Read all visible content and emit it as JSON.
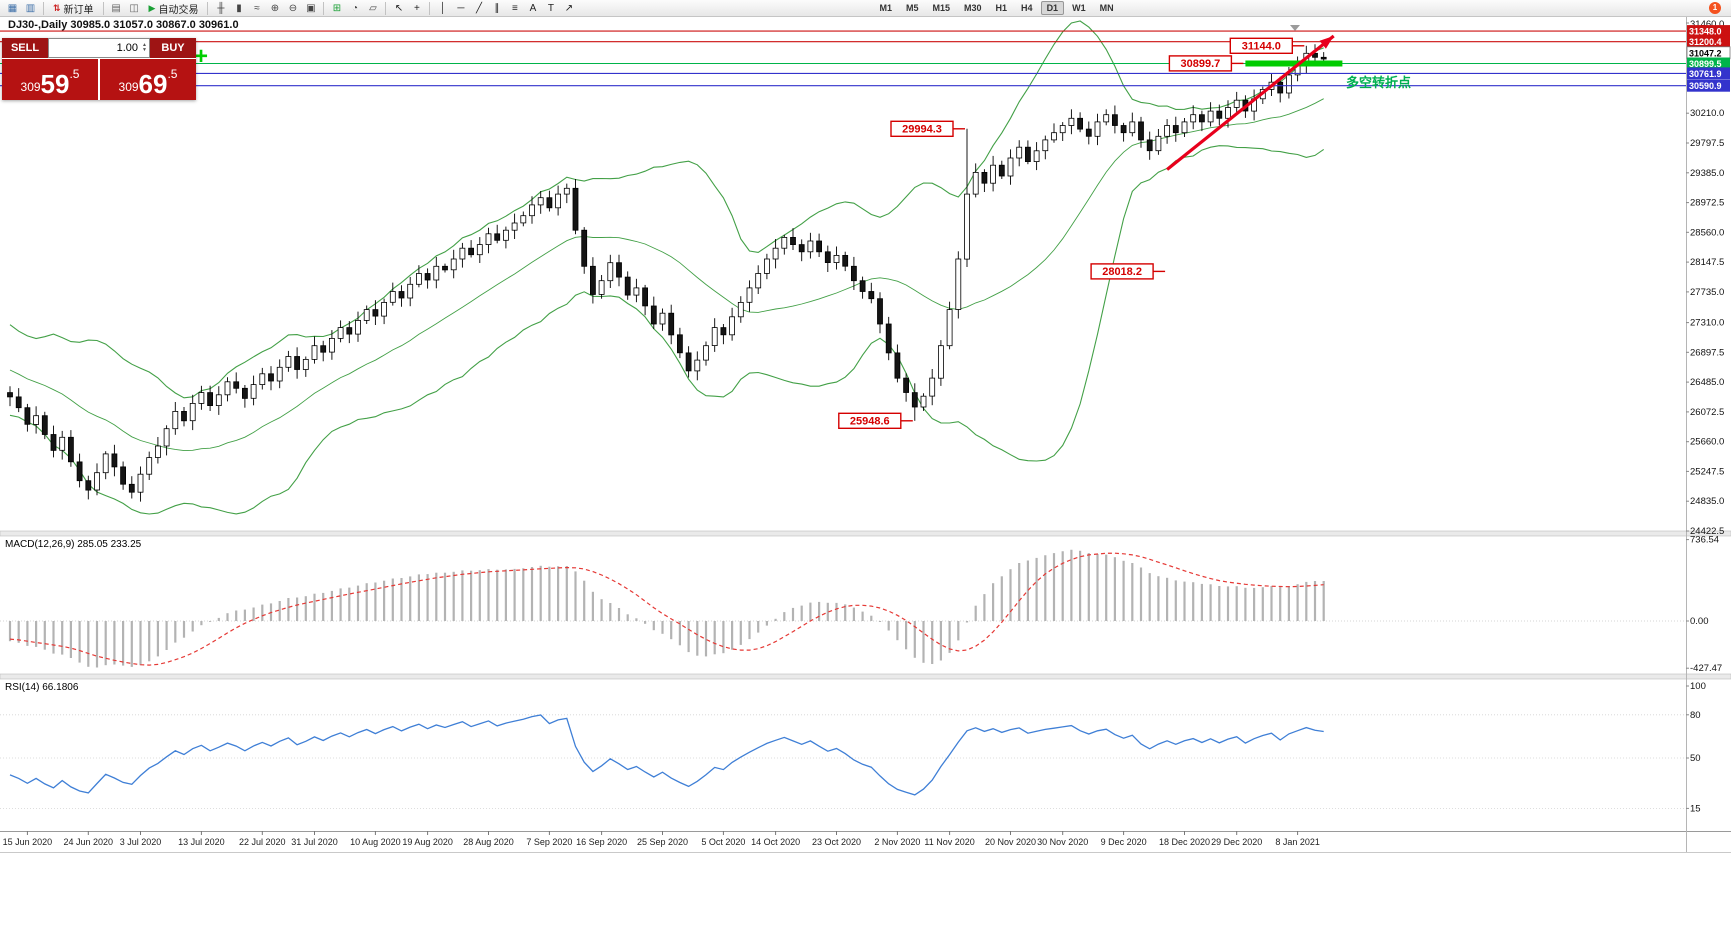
{
  "toolbar": {
    "items": [
      {
        "t": "icon",
        "name": "new-chart-icon",
        "g": "▦",
        "c": "#3d6fa8"
      },
      {
        "t": "icon",
        "name": "profiles-icon",
        "g": "▥",
        "c": "#3d6fa8"
      },
      {
        "t": "sep"
      },
      {
        "t": "btn",
        "name": "new-order-button",
        "g": "⇅",
        "gc": "#cc2222",
        "label": "新订单"
      },
      {
        "t": "sep"
      },
      {
        "t": "icon",
        "name": "market-watch-icon",
        "g": "▤",
        "c": "#666666"
      },
      {
        "t": "icon",
        "name": "data-window-icon",
        "g": "◫",
        "c": "#666666"
      },
      {
        "t": "btn",
        "name": "autotrading-button",
        "g": "▶",
        "gc": "#1aa035",
        "label": "自动交易"
      },
      {
        "t": "sep"
      },
      {
        "t": "icon",
        "name": "bar-chart-icon",
        "g": "╫",
        "c": "#444444"
      },
      {
        "t": "icon",
        "name": "candlestick-chart-icon",
        "g": "▮",
        "c": "#444444"
      },
      {
        "t": "icon",
        "name": "line-chart-icon",
        "g": "≈",
        "c": "#444444"
      },
      {
        "t": "icon",
        "name": "zoom-in-icon",
        "g": "⊕",
        "c": "#444444"
      },
      {
        "t": "icon",
        "name": "zoom-out-icon",
        "g": "⊖",
        "c": "#444444"
      },
      {
        "t": "icon",
        "name": "tile-windows-icon",
        "g": "▣",
        "c": "#444444"
      },
      {
        "t": "sep"
      },
      {
        "t": "icon",
        "name": "indicators-icon",
        "g": "⊞",
        "c": "#1aa035"
      },
      {
        "t": "icon",
        "name": "periods-icon",
        "g": "◔",
        "c": "#444444"
      },
      {
        "t": "icon",
        "name": "templates-icon",
        "g": "▱",
        "c": "#444444"
      },
      {
        "t": "sep"
      },
      {
        "t": "icon",
        "name": "cursor-icon",
        "g": "↖",
        "c": "#222222"
      },
      {
        "t": "icon",
        "name": "crosshair-icon",
        "g": "+",
        "c": "#222222"
      },
      {
        "t": "sep"
      },
      {
        "t": "icon",
        "name": "vertical-line-icon",
        "g": "│",
        "c": "#222222"
      },
      {
        "t": "icon",
        "name": "horizontal-line-icon",
        "g": "─",
        "c": "#222222"
      },
      {
        "t": "icon",
        "name": "trendline-icon",
        "g": "╱",
        "c": "#222222"
      },
      {
        "t": "icon",
        "name": "channel-icon",
        "g": "∥",
        "c": "#222222"
      },
      {
        "t": "icon",
        "name": "fibonacci-icon",
        "g": "≡",
        "c": "#222222"
      },
      {
        "t": "icon",
        "name": "text-icon",
        "g": "A",
        "c": "#222222"
      },
      {
        "t": "icon",
        "name": "label-icon",
        "g": "T",
        "c": "#222222"
      },
      {
        "t": "icon",
        "name": "arrows-icon",
        "g": "↗",
        "c": "#222222"
      }
    ],
    "timeframes": [
      {
        "label": "M1"
      },
      {
        "label": "M5"
      },
      {
        "label": "M15"
      },
      {
        "label": "M30"
      },
      {
        "label": "H1"
      },
      {
        "label": "H4"
      },
      {
        "label": "D1",
        "active": true
      },
      {
        "label": "W1"
      },
      {
        "label": "MN"
      }
    ],
    "notification_badge": "1"
  },
  "chart_header": {
    "symbol_line": "DJ30-,Daily  30985.0 31057.0 30867.0 30961.0"
  },
  "trade_panel": {
    "sell_label": "SELL",
    "buy_label": "BUY",
    "volume": "1.00",
    "sell_price": "30959.5",
    "buy_price": "30969.5"
  },
  "indicators": {
    "macd_label": "MACD(12,26,9) 285.05 233.25",
    "rsi_label": "RSI(14) 66.1806"
  },
  "annotations": {
    "cross_marker": "+",
    "trend_text": {
      "text": "多空转折点",
      "color": "#00b050"
    },
    "price_labels": [
      {
        "text": "31144.0",
        "price": 31144.0,
        "at_index": 149
      },
      {
        "text": "30899.7",
        "price": 30899.7,
        "at_index": 142
      },
      {
        "text": "29994.3",
        "price": 29994.3,
        "at_index": 110
      },
      {
        "text": "28018.2",
        "price": 28018.2,
        "at_index": 133
      },
      {
        "text": "25948.6",
        "price": 25948.6,
        "at_index": 104
      }
    ],
    "support_band": {
      "price": 30899.5,
      "from_index": 142,
      "to_index": 152,
      "color": "#00cc00"
    },
    "trend_arrow": {
      "from_index": 133,
      "from_price": 29430,
      "to_index": 151,
      "to_price": 31280,
      "color": "#e8001c"
    }
  },
  "hlines": [
    {
      "price": 31348.0,
      "color": "#cc1111"
    },
    {
      "price": 31200.4,
      "color": "#cc1111"
    },
    {
      "price": 30899.5,
      "color": "#00b44a"
    },
    {
      "price": 30761.9,
      "color": "#3333cc"
    },
    {
      "price": 30590.9,
      "color": "#3333cc"
    }
  ],
  "axis": {
    "price_ticks": [
      "31460.0",
      "30210.0",
      "29797.5",
      "29385.0",
      "28972.5",
      "28560.0",
      "28147.5",
      "27735.0",
      "27310.0",
      "26897.5",
      "26485.0",
      "26072.5",
      "25660.0",
      "25247.5",
      "24835.0",
      "24422.5"
    ],
    "price_markers": [
      {
        "text": "31348.0",
        "bg": "#cc1111",
        "fg": "#ffffff"
      },
      {
        "text": "31200.4",
        "bg": "#cc1111",
        "fg": "#ffffff"
      },
      {
        "text": "31047.2",
        "bg": "#ffffff",
        "fg": "#000000",
        "border": "#777777"
      },
      {
        "text": "30899.5",
        "bg": "#00b44a",
        "fg": "#ffffff"
      },
      {
        "text": "30761.9",
        "bg": "#3333cc",
        "fg": "#ffffff"
      },
      {
        "text": "30590.9",
        "bg": "#3333cc",
        "fg": "#ffffff"
      }
    ],
    "macd_ticks": [
      "736.54",
      "0.00",
      "-427.47"
    ],
    "rsi_ticks": [
      "100",
      "80",
      "50",
      "15"
    ],
    "dates": [
      "15 Jun 2020",
      "24 Jun 2020",
      "3 Jul 2020",
      "13 Jul 2020",
      "22 Jul 2020",
      "31 Jul 2020",
      "10 Aug 2020",
      "19 Aug 2020",
      "28 Aug 2020",
      "7 Sep 2020",
      "16 Sep 2020",
      "25 Sep 2020",
      "5 Oct 2020",
      "14 Oct 2020",
      "23 Oct 2020",
      "2 Nov 2020",
      "11 Nov 2020",
      "20 Nov 2020",
      "30 Nov 2020",
      "9 Dec 2020",
      "18 Dec 2020",
      "29 Dec 2020",
      "8 Jan 2021"
    ]
  },
  "chart_data": {
    "type": "candlestick",
    "symbol": "DJ30-",
    "timeframe": "Daily",
    "last_bar": {
      "open": 30985.0,
      "high": 31057.0,
      "low": 30867.0,
      "close": 30961.0
    },
    "price_range": {
      "min": 24422.5,
      "max": 31460.0
    },
    "closes": [
      26280,
      26130,
      25900,
      26020,
      25760,
      25540,
      25720,
      25380,
      25120,
      24990,
      25230,
      25490,
      25310,
      25070,
      24960,
      25210,
      25440,
      25600,
      25840,
      26080,
      25950,
      26190,
      26340,
      26160,
      26310,
      26490,
      26400,
      26260,
      26450,
      26600,
      26500,
      26690,
      26840,
      26660,
      26800,
      26990,
      26900,
      27090,
      27240,
      27150,
      27340,
      27490,
      27400,
      27590,
      27740,
      27650,
      27840,
      27990,
      27900,
      28090,
      28040,
      28190,
      28340,
      28250,
      28390,
      28540,
      28450,
      28590,
      28690,
      28790,
      28940,
      29040,
      28900,
      29090,
      29170,
      28590,
      28090,
      27700,
      27890,
      28140,
      27940,
      27690,
      27790,
      27540,
      27290,
      27440,
      27140,
      26890,
      26640,
      26790,
      26990,
      27240,
      27140,
      27390,
      27590,
      27790,
      27990,
      28190,
      28340,
      28490,
      28390,
      28290,
      28440,
      28290,
      28140,
      28240,
      28090,
      27890,
      27740,
      27640,
      27290,
      26890,
      26540,
      26340,
      26140,
      26290,
      26540,
      26990,
      27490,
      28190,
      29090,
      29390,
      29240,
      29490,
      29340,
      29590,
      29740,
      29540,
      29690,
      29840,
      29940,
      30040,
      30140,
      29990,
      29890,
      30090,
      30190,
      30040,
      29940,
      30090,
      29840,
      29690,
      29890,
      30040,
      29940,
      30090,
      30190,
      30090,
      30240,
      30140,
      30290,
      30390,
      30240,
      30410,
      30540,
      30640,
      30490,
      30740,
      30890,
      31040,
      30985,
      30961
    ],
    "wick_overrides": {
      "104": {
        "low": 25948.6
      },
      "110": {
        "high": 29994.3
      },
      "149": {
        "high": 31144.0
      },
      "151": {
        "high": 31057.0,
        "low": 30867.0
      }
    },
    "bollinger": {
      "period": 20,
      "deviation": 2,
      "color": "#43a047"
    },
    "macd": {
      "fast": 12,
      "slow": 26,
      "signal": 9,
      "histogram_color": "#b3b3b3",
      "signal_color": "#e53935"
    },
    "rsi": {
      "period": 14,
      "color": "#3f7fd6",
      "current": 66.1806
    }
  }
}
